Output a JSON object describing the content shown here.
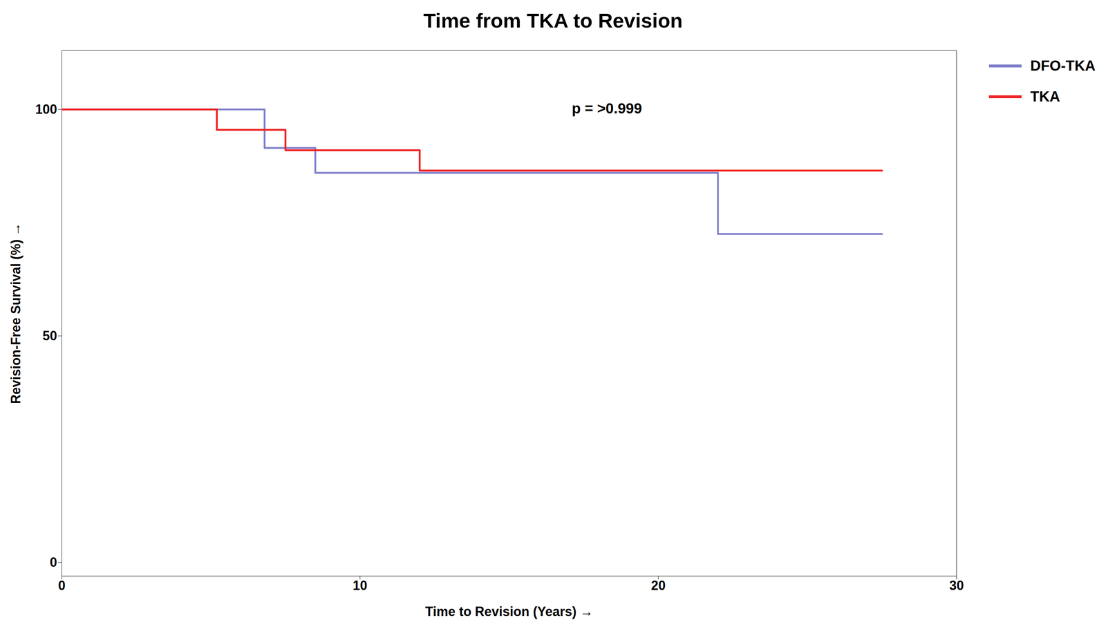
{
  "chart_data": {
    "type": "line",
    "title": "Time from TKA to Revision",
    "xlabel": "Time to Revision (Years)",
    "ylabel": "Revision-Free Survival (%)",
    "annotation": "p = >0.999",
    "xlim": [
      0,
      30
    ],
    "ylim": [
      -3,
      113
    ],
    "xticks": [
      0,
      10,
      20,
      30
    ],
    "yticks": [
      0,
      50,
      100
    ],
    "grid": false,
    "legend": "right",
    "series": [
      {
        "name": "DFO-TKA",
        "color": "#8080cc",
        "x": [
          0,
          6.8,
          6.8,
          8.5,
          8.5,
          22.0,
          22.0,
          27.5
        ],
        "values": [
          100,
          100,
          91.5,
          91.5,
          86.0,
          86.0,
          72.5,
          72.5
        ]
      },
      {
        "name": "TKA",
        "color": "#ee2222",
        "x": [
          0,
          5.2,
          5.2,
          7.5,
          7.5,
          12.0,
          12.0,
          27.5
        ],
        "values": [
          100,
          100,
          95.5,
          95.5,
          91.0,
          91.0,
          86.5,
          86.5
        ]
      }
    ]
  }
}
